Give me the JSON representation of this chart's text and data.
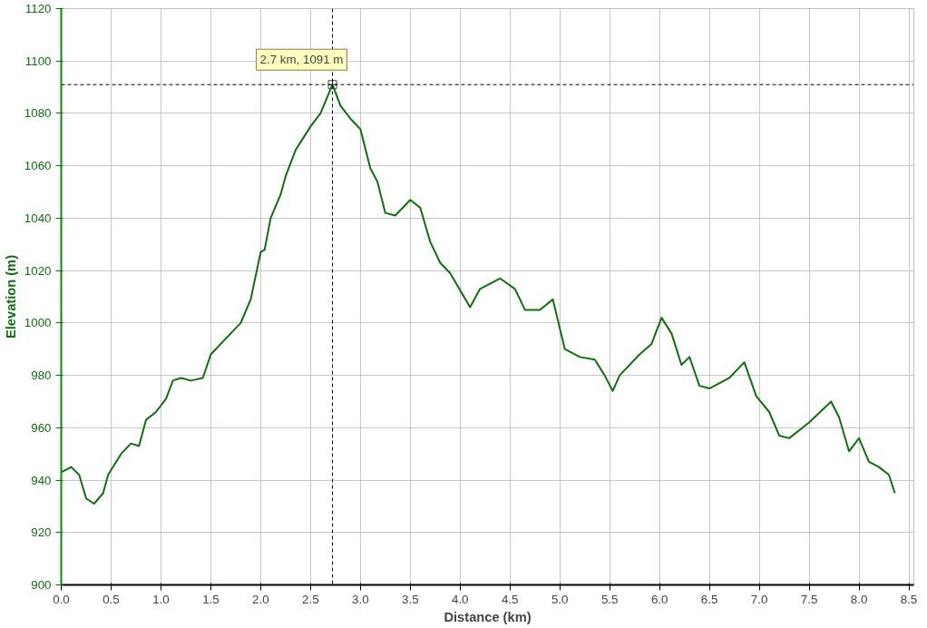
{
  "chart_data": {
    "type": "line",
    "xlabel": "Distance (km)",
    "ylabel": "Elevation (m)",
    "x": [
      0,
      0.1,
      0.18,
      0.25,
      0.33,
      0.42,
      0.47,
      0.6,
      0.7,
      0.78,
      0.85,
      0.95,
      1.05,
      1.12,
      1.2,
      1.3,
      1.42,
      1.5,
      1.65,
      1.8,
      1.9,
      2.0,
      2.04,
      2.1,
      2.2,
      2.25,
      2.35,
      2.5,
      2.6,
      2.72,
      2.8,
      2.9,
      3.0,
      3.1,
      3.17,
      3.25,
      3.35,
      3.5,
      3.6,
      3.7,
      3.8,
      3.9,
      4.1,
      4.2,
      4.4,
      4.55,
      4.65,
      4.8,
      4.93,
      5.05,
      5.2,
      5.35,
      5.45,
      5.53,
      5.6,
      5.8,
      5.92,
      6.02,
      6.12,
      6.22,
      6.3,
      6.4,
      6.5,
      6.7,
      6.85,
      6.97,
      7.1,
      7.2,
      7.3,
      7.5,
      7.72,
      7.8,
      7.9,
      8.0,
      8.1,
      8.2,
      8.3,
      8.36
    ],
    "series": [
      {
        "color": "#107010",
        "values": [
          943,
          945,
          942,
          933,
          931,
          935,
          942,
          950,
          954,
          953,
          963,
          966,
          971,
          978,
          979,
          978,
          979,
          988,
          994,
          1000,
          1009,
          1027,
          1028,
          1040,
          1049,
          1056,
          1066,
          1075,
          1080,
          1091,
          1083,
          1078,
          1074,
          1059,
          1054,
          1042,
          1041,
          1047,
          1044,
          1031,
          1023,
          1019,
          1006,
          1013,
          1017,
          1013,
          1005,
          1005,
          1009,
          990,
          987,
          986,
          980,
          974,
          980,
          988,
          992,
          1002,
          996,
          984,
          987,
          976,
          975,
          979,
          985,
          972,
          966,
          957,
          956,
          962,
          970,
          964,
          951,
          956,
          947,
          945,
          942,
          935
        ]
      }
    ],
    "xlim": [
      0,
      8.55
    ],
    "ylim": [
      900,
      1120
    ],
    "xticks": [
      {
        "value": 0,
        "label": "0.0"
      },
      {
        "value": 0.5,
        "label": "0.5"
      },
      {
        "value": 1,
        "label": "1.0"
      },
      {
        "value": 1.5,
        "label": "1.5"
      },
      {
        "value": 2,
        "label": "2.0"
      },
      {
        "value": 2.5,
        "label": "2.5"
      },
      {
        "value": 3,
        "label": "3.0"
      },
      {
        "value": 3.5,
        "label": "3.5"
      },
      {
        "value": 4,
        "label": "4.0"
      },
      {
        "value": 4.5,
        "label": "4.5"
      },
      {
        "value": 5,
        "label": "5.0"
      },
      {
        "value": 5.5,
        "label": "5.5"
      },
      {
        "value": 6,
        "label": "6.0"
      },
      {
        "value": 6.5,
        "label": "6.5"
      },
      {
        "value": 7,
        "label": "7.0"
      },
      {
        "value": 7.5,
        "label": "7.5"
      },
      {
        "value": 8,
        "label": "8.0"
      },
      {
        "value": 8.5,
        "label": "8.5"
      }
    ],
    "yticks": [
      900,
      920,
      940,
      960,
      980,
      1000,
      1020,
      1040,
      1060,
      1080,
      1100,
      1120
    ],
    "grid": true,
    "marker": "none",
    "line_style": "solid",
    "ref_lines": [
      {
        "axis": "x",
        "value": 2.72,
        "line_style": "dashed",
        "color": "#000000"
      },
      {
        "axis": "y",
        "value": 1091,
        "line_style": "dashed",
        "color": "#000000"
      }
    ],
    "annotations": [
      {
        "text": "2.7 km, 1091 m",
        "x": 2.72,
        "y": 1091
      }
    ]
  }
}
